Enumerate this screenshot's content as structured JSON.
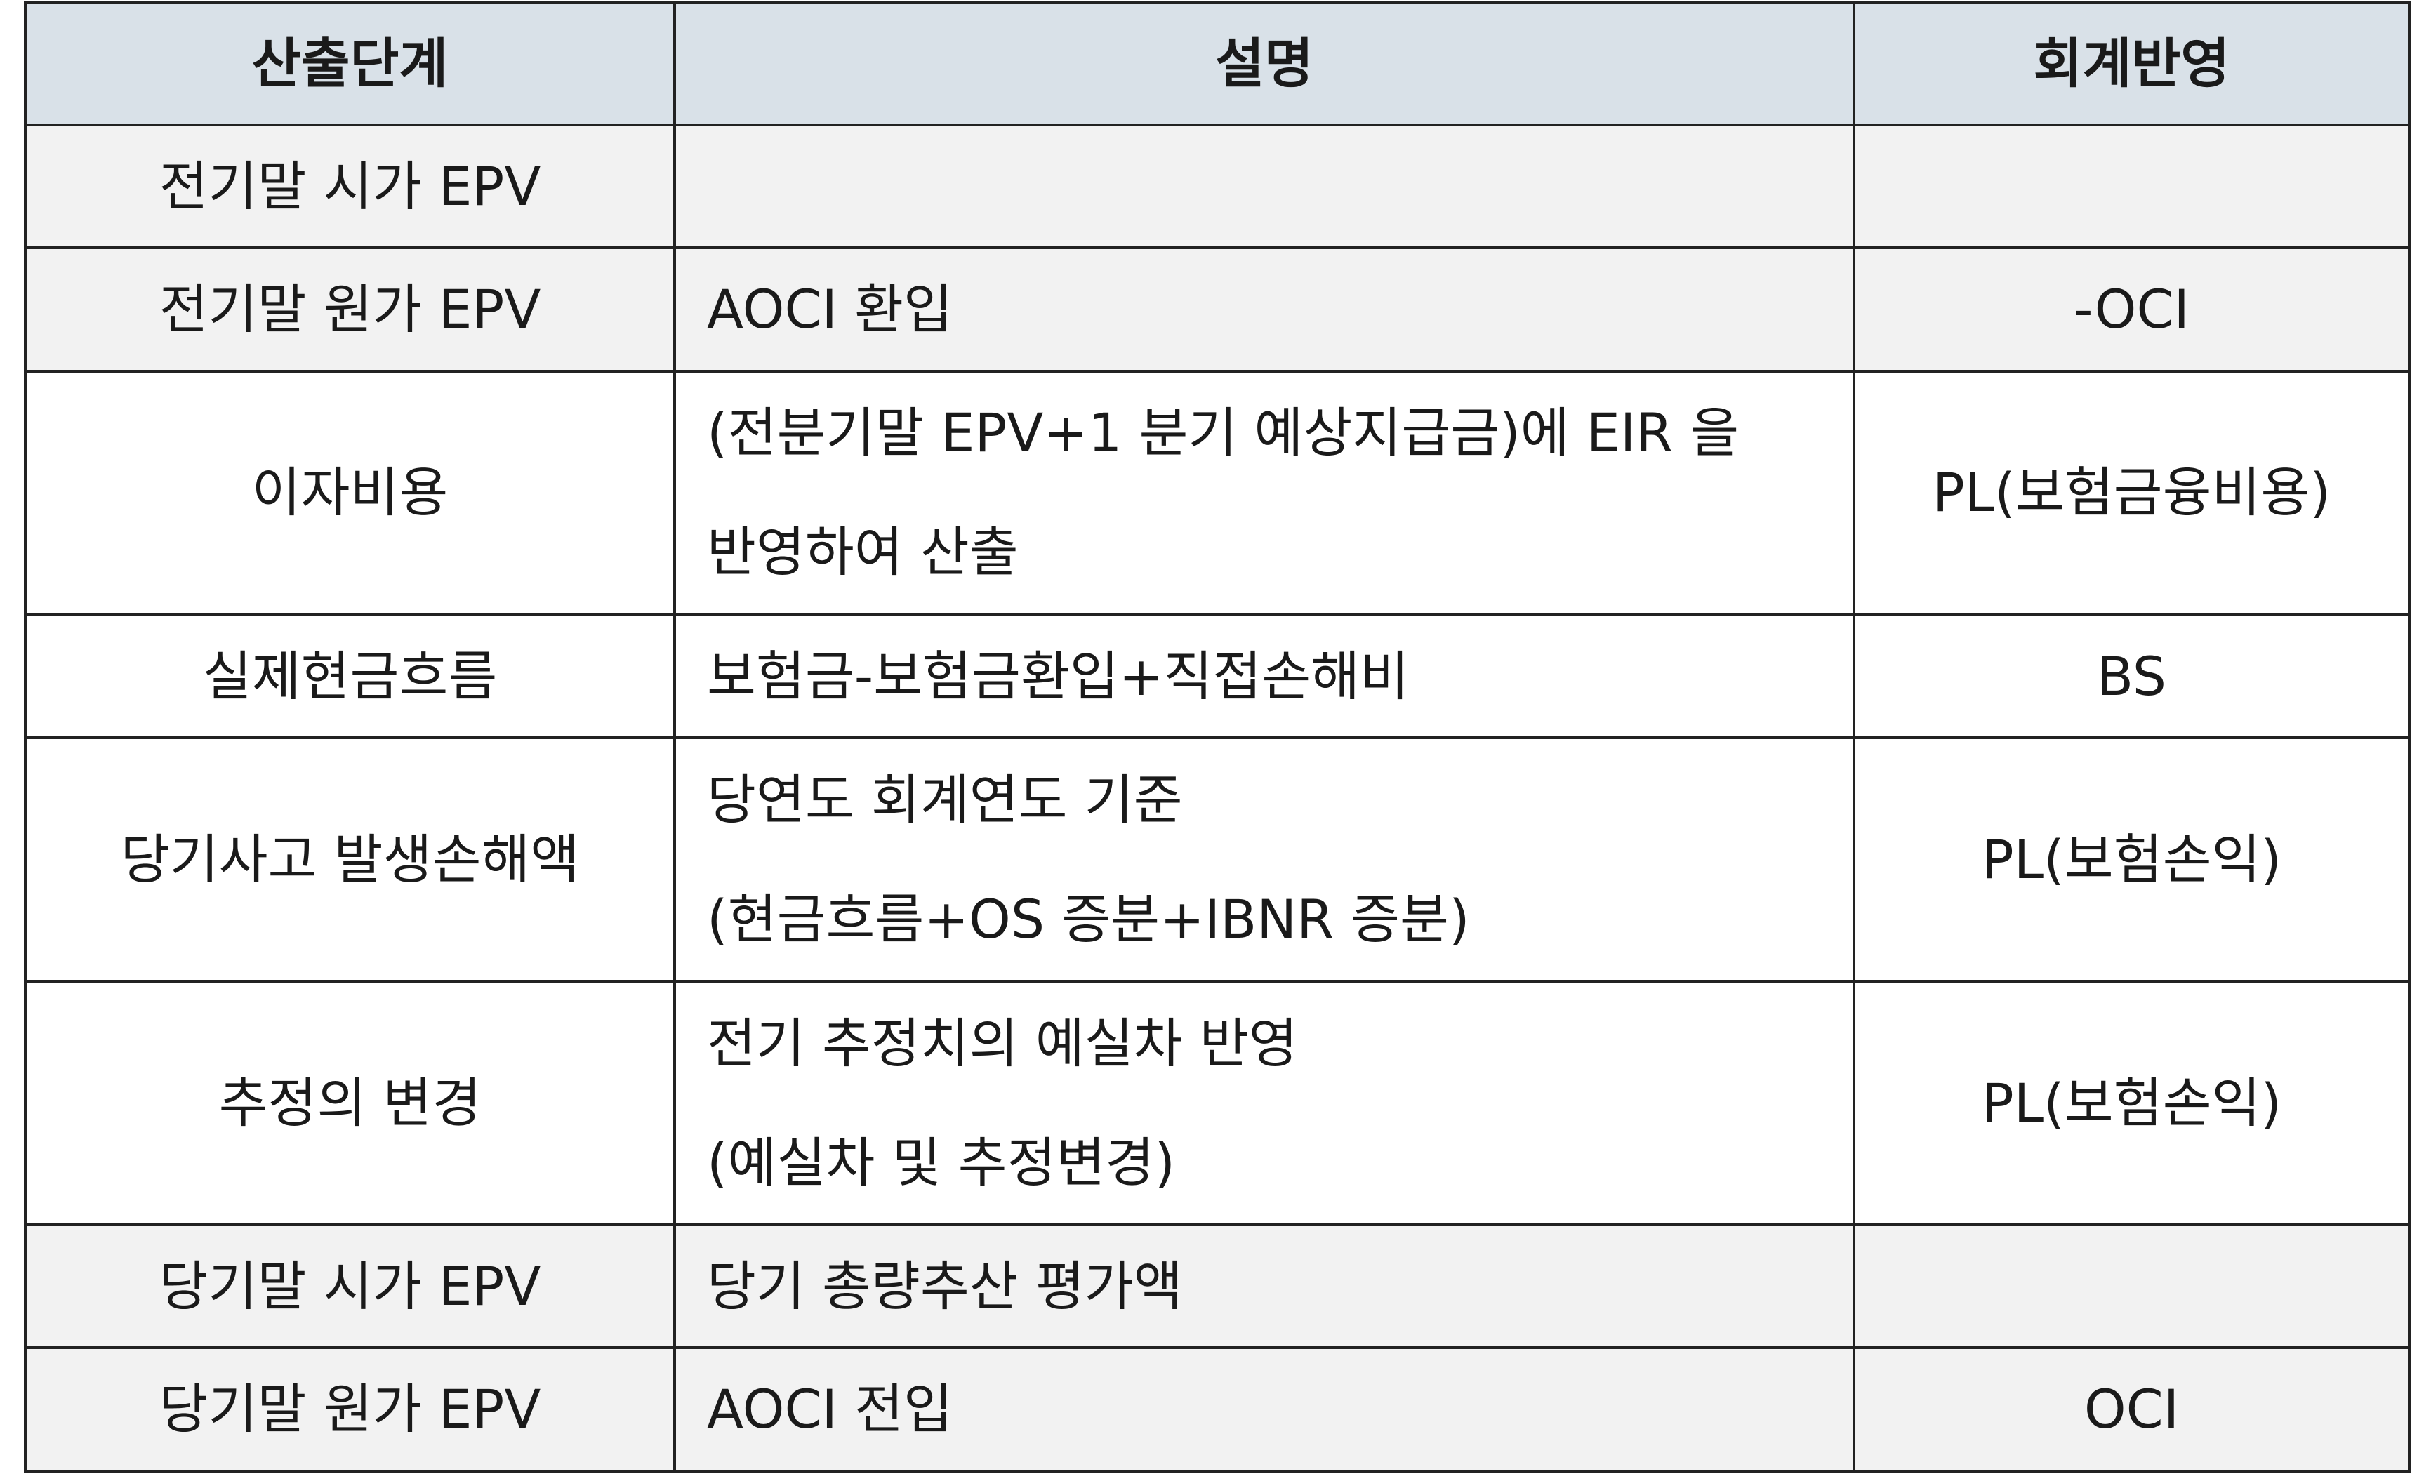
{
  "table": {
    "headers": [
      "산출단계",
      "설명",
      "회계반영"
    ],
    "rows": [
      {
        "stage": "전기말 시가 EPV",
        "desc": [
          ""
        ],
        "account": ""
      },
      {
        "stage": "전기말 원가 EPV",
        "desc": [
          "AOCI 환입"
        ],
        "account": "-OCI"
      },
      {
        "stage": "이자비용",
        "desc": [
          "(전분기말 EPV+1 분기 예상지급금)에 EIR 을",
          "반영하여 산출"
        ],
        "account": "PL(보험금융비용)"
      },
      {
        "stage": "실제현금흐름",
        "desc": [
          "보험금-보험금환입+직접손해비"
        ],
        "account": "BS"
      },
      {
        "stage": "당기사고 발생손해액",
        "desc": [
          "당연도 회계연도 기준",
          "(현금흐름+OS 증분+IBNR 증분)"
        ],
        "account": "PL(보험손익)"
      },
      {
        "stage": "추정의 변경",
        "desc": [
          "전기 추정치의 예실차 반영",
          "(예실차 및 추정변경)"
        ],
        "account": "PL(보험손익)"
      },
      {
        "stage": "당기말 시가 EPV",
        "desc": [
          "당기 총량추산 평가액"
        ],
        "account": ""
      },
      {
        "stage": "당기말 원가 EPV",
        "desc": [
          "AOCI 전입"
        ],
        "account": "OCI"
      }
    ]
  }
}
